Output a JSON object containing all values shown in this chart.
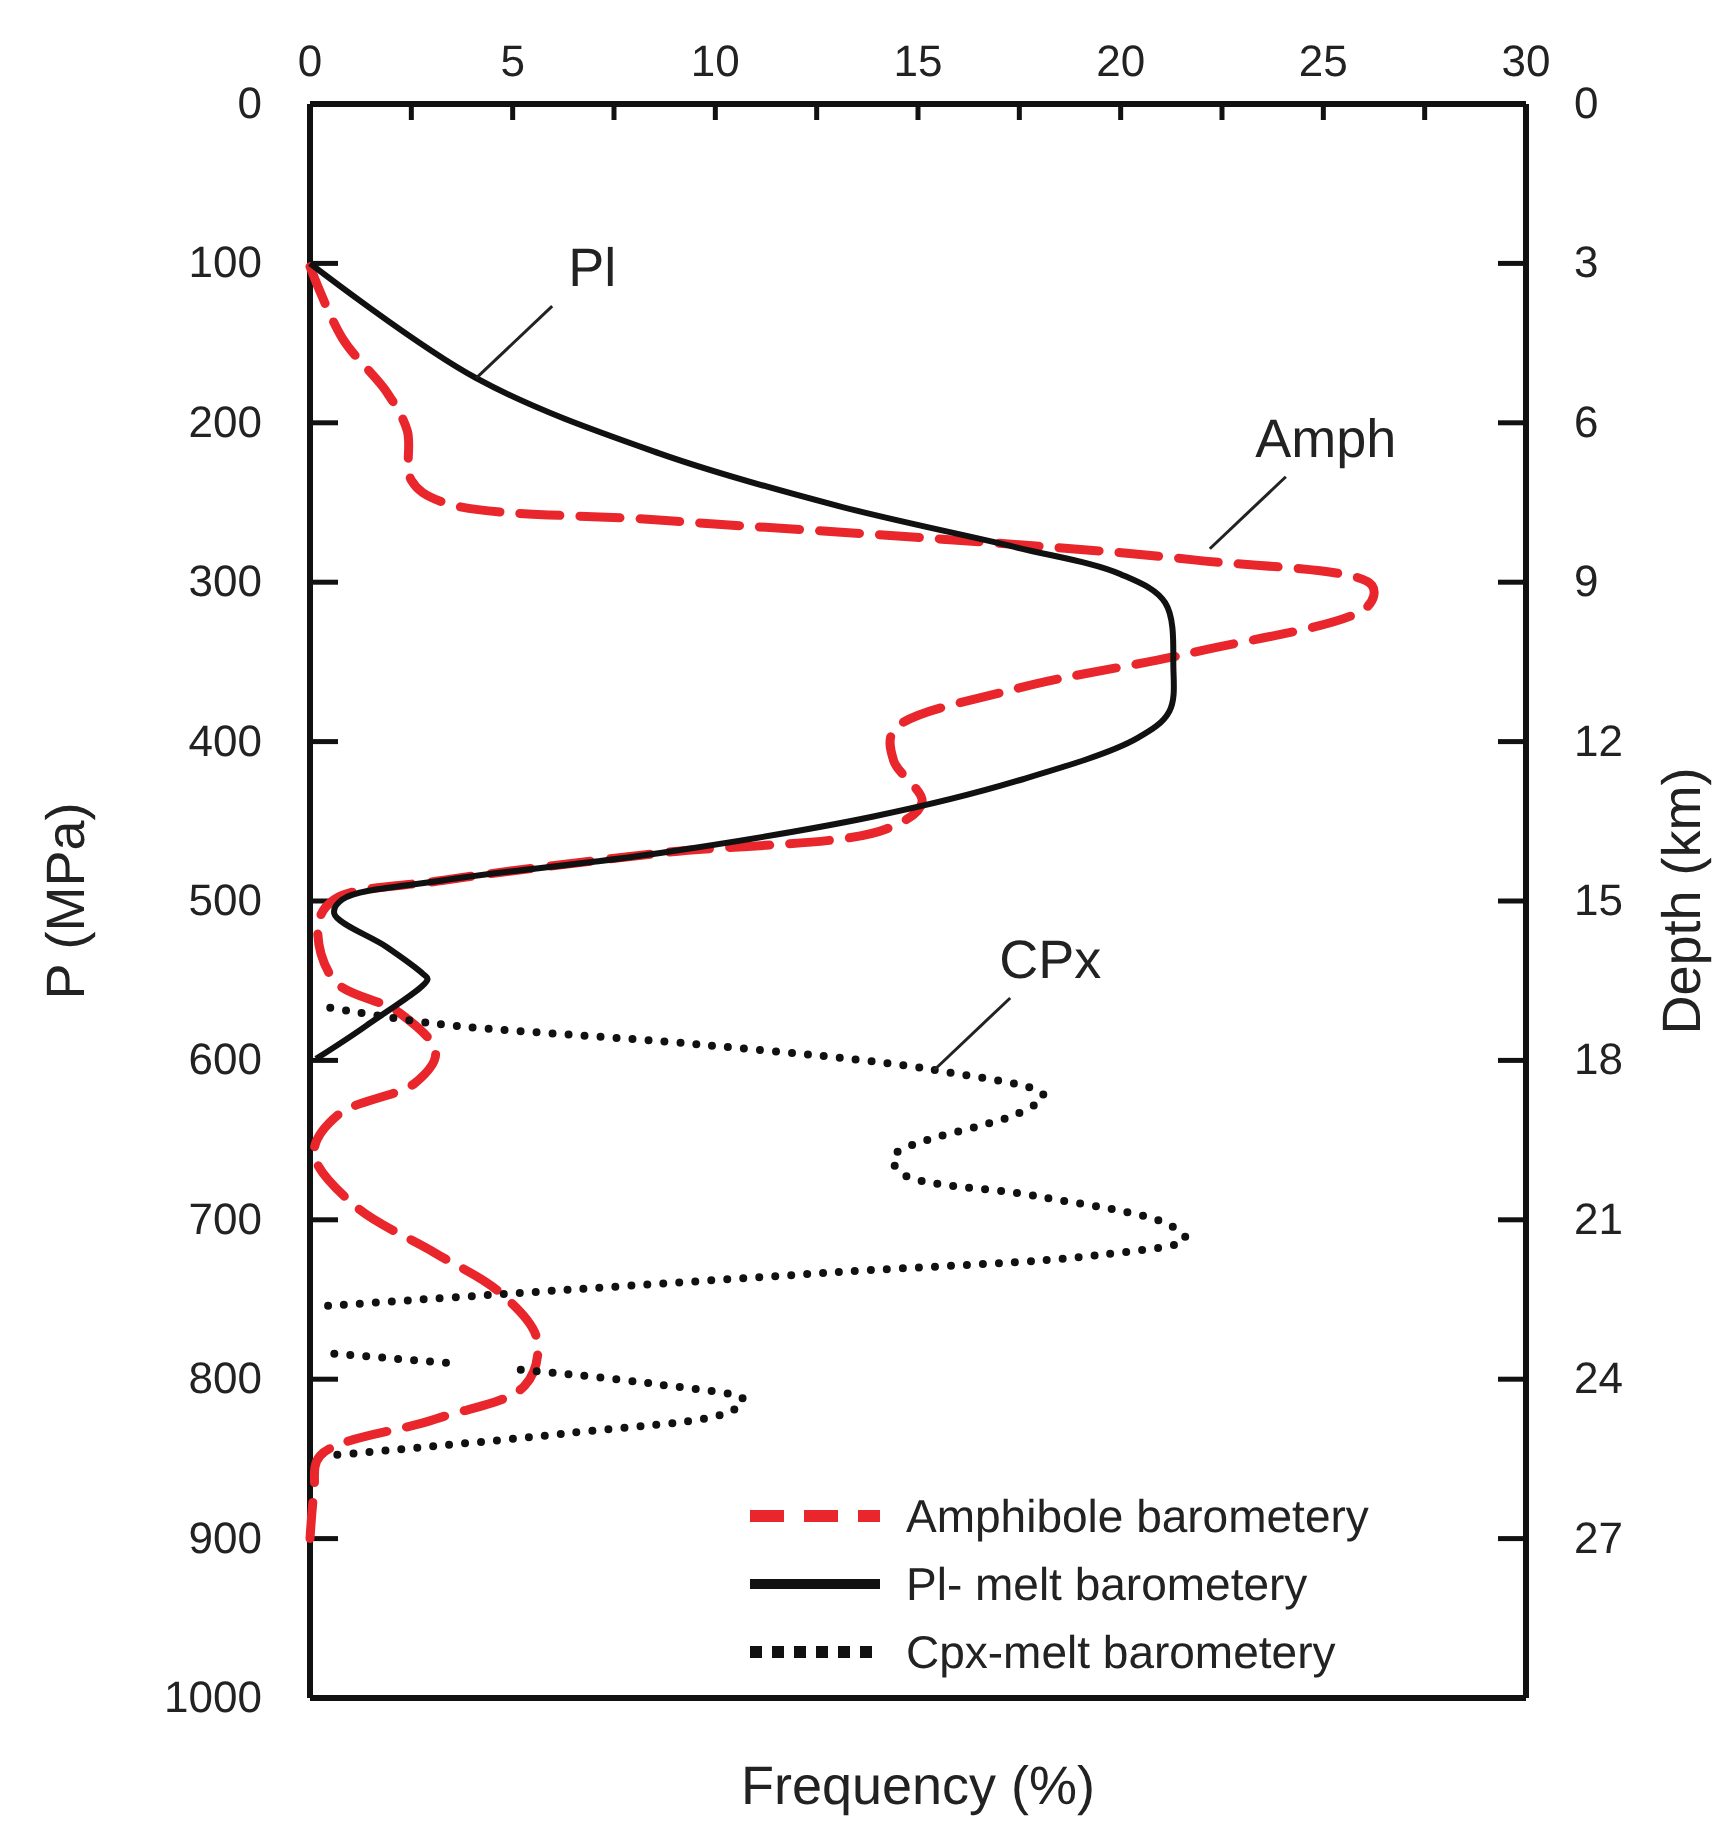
{
  "chart_data": {
    "type": "line",
    "xlabel": "Frequency (%)",
    "ylabel": "P (MPa)",
    "y2label": "Depth (km)",
    "xlim": [
      0,
      30
    ],
    "xticks": [
      0,
      {
        "value": 2.5,
        "label": null
      },
      5,
      {
        "value": 7.5,
        "label": null
      },
      10,
      {
        "value": 12.5,
        "label": null
      },
      15,
      {
        "value": 17.5,
        "label": null
      },
      20,
      {
        "value": 22.5,
        "label": null
      },
      25,
      {
        "value": 27.5,
        "label": null
      },
      30
    ],
    "ylim": [
      1000,
      0
    ],
    "yticks": [
      0,
      100,
      200,
      300,
      400,
      500,
      600,
      700,
      800,
      900,
      1000
    ],
    "y2lim": [
      30,
      0
    ],
    "y2ticks": [
      0,
      3,
      6,
      9,
      12,
      15,
      18,
      21,
      24,
      27
    ],
    "legend": "bottom right",
    "grid": false,
    "series": [
      {
        "name": "Amphibole barometery",
        "color": "#e8262b",
        "line_style": "dashed",
        "x": [
          0,
          0.8,
          1.9,
          2.4,
          2.5,
          3.3,
          8.6,
          15.6,
          21.8,
          26.2,
          26.1,
          21.8,
          17.4,
          14.4,
          14.4,
          15.1,
          14.2,
          8.6,
          3.3,
          0.6,
          0.2,
          0.6,
          2.2,
          3.1,
          2.6,
          0.7,
          0.1,
          1.1,
          3.1,
          4.7,
          5.6,
          5.3,
          3.1,
          0.25,
          0.1,
          0
        ],
        "values": [
          102,
          147,
          181,
          205,
          236,
          250,
          261,
          273,
          286,
          302,
          315,
          344,
          367,
          393,
          412,
          438,
          455,
          470,
          487,
          499,
          515,
          550,
          570,
          595,
          614,
          634,
          658,
          691,
          721,
          746,
          775,
          804,
          825,
          848,
          870,
          900
        ]
      },
      {
        "name": "Pl- melt barometery",
        "color": "#111111",
        "line_style": "solid",
        "x": [
          0,
          4.1,
          8.6,
          13,
          17.4,
          20,
          21.1,
          21.3,
          21.2,
          20.4,
          17.4,
          13.9,
          8.6,
          3.3,
          0.8,
          0.6,
          1.9,
          2.8,
          2.9,
          1.4,
          0.15
        ],
        "values": [
          100,
          172,
          219,
          252,
          278,
          295,
          313,
          353,
          381,
          398,
          425,
          447,
          470,
          487,
          499,
          508,
          529,
          546,
          549,
          578,
          599
        ]
      },
      {
        "name": "Cpx-melt barometery",
        "color": "#111111",
        "line_style": "dotted",
        "x": [
          0.5,
          3.1,
          9.6,
          15.4,
          18.1,
          17.5,
          14.4,
          14.6,
          17.9,
          21.1,
          21.6,
          19.5,
          12.9,
          6.3,
          0.4,
          null,
          0.6,
          3.5,
          null,
          5.2,
          8.5,
          10.7,
          10.3,
          6.3,
          2.2,
          0.4
        ],
        "values": [
          567,
          577,
          590,
          606,
          622,
          633,
          660,
          671,
          685,
          702,
          712,
          722,
          733,
          744,
          754,
          null,
          784,
          790,
          null,
          794,
          803,
          813,
          821,
          834,
          844,
          848
        ]
      }
    ],
    "annotations": [
      {
        "text": "Pl",
        "x": 4.1,
        "y": 172
      },
      {
        "text": "Amph",
        "x": 22.2,
        "y": 279
      },
      {
        "text": "CPx",
        "x": 15.4,
        "y": 606
      }
    ]
  }
}
